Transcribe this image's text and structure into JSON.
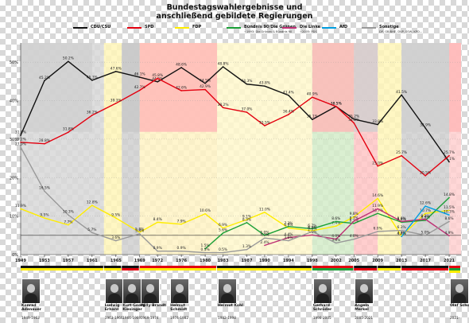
{
  "title_line1": "Bundestagswahlergebnisse und",
  "title_line2": "anschließend gebildete Regierungen",
  "legend": [
    {
      "name": "CDU/CSU",
      "color": "#111111",
      "note": ""
    },
    {
      "name": "SPD",
      "color": "#e3000f",
      "note": ""
    },
    {
      "name": "FDP",
      "color": "#ffed00",
      "note": ""
    },
    {
      "name": "Bündnis 90/Die Grünen",
      "color": "#1aa037",
      "note": "~1993: Die Grünen & Bündnis 90"
    },
    {
      "name": "Die Linke",
      "color": "#be3075",
      "note": "~2005: PDS"
    },
    {
      "name": "AfD",
      "color": "#009ee0",
      "note": ""
    },
    {
      "name": "Sonstige",
      "color": "#999999",
      "note": "DP, GB/BHE, DVP, SSW, KPD..."
    }
  ],
  "chart_data": {
    "type": "line",
    "x": [
      1949,
      1953,
      1957,
      1961,
      1965,
      1969,
      1972,
      1976,
      1980,
      1983,
      1987,
      1990,
      1994,
      1998,
      2002,
      2005,
      2009,
      2013,
      2017,
      2021
    ],
    "x_ticks": [
      "1949",
      "1953",
      "1957",
      "1961",
      "1965",
      "1969",
      "1972",
      "1976",
      "1980",
      "1983",
      "1987",
      "1990",
      "1994",
      "1998",
      "2002",
      "2005",
      "2009",
      "2013",
      "2017",
      "2021"
    ],
    "y_ticks": [
      "0%",
      "10%",
      "20%",
      "30%",
      "40%",
      "50%"
    ],
    "ylim": [
      0,
      55
    ],
    "threshold": 5,
    "series": [
      {
        "name": "CDU/CSU",
        "color": "#111111",
        "x": [
          1949,
          1953,
          1957,
          1961,
          1965,
          1969,
          1972,
          1976,
          1980,
          1983,
          1987,
          1990,
          1994,
          1998,
          2002,
          2005,
          2009,
          2013,
          2017,
          2021
        ],
        "values": [
          31.0,
          45.2,
          50.2,
          45.3,
          47.6,
          46.1,
          44.9,
          48.6,
          44.5,
          48.8,
          44.3,
          43.8,
          41.4,
          35.1,
          38.5,
          35.2,
          33.8,
          41.5,
          32.9,
          24.1
        ],
        "labels": [
          "31.0%",
          "45.2%",
          "50.2%",
          "45.3%",
          "47.6%",
          "46.1%",
          "44.9%",
          "48.6%",
          "44.5%",
          "48.8%",
          "44.3%",
          "43.8%",
          "41.4%",
          "35.1%",
          "38.5%",
          "35.2%",
          "33.8%",
          "41.5%",
          "32.9%",
          "24.1%"
        ]
      },
      {
        "name": "SPD",
        "color": "#e3000f",
        "x": [
          1949,
          1953,
          1957,
          1961,
          1965,
          1969,
          1972,
          1976,
          1980,
          1983,
          1987,
          1990,
          1994,
          1998,
          2002,
          2005,
          2009,
          2013,
          2017,
          2021
        ],
        "values": [
          29.2,
          28.8,
          31.8,
          36.2,
          39.3,
          42.7,
          45.8,
          42.6,
          42.9,
          38.2,
          37.0,
          33.5,
          36.4,
          40.9,
          38.5,
          34.2,
          23.0,
          25.7,
          20.5,
          25.7
        ],
        "labels": [
          "29.2%",
          "28.8%",
          "31.8%",
          "36.2%",
          "39.3%",
          "42.7%",
          "45.8%",
          "42.6%",
          "42.9%",
          "38.2%",
          "37.0%",
          "33.5%",
          "36.4%",
          "40.9%",
          "38.5%",
          "34.2%",
          "23.0%",
          "25.7%",
          "20.5%",
          "25.7%"
        ]
      },
      {
        "name": "FDP",
        "color": "#ffed00",
        "x": [
          1949,
          1953,
          1957,
          1961,
          1965,
          1969,
          1972,
          1976,
          1980,
          1983,
          1987,
          1990,
          1994,
          1998,
          2002,
          2005,
          2009,
          2013,
          2017,
          2021
        ],
        "values": [
          11.9,
          9.5,
          7.7,
          12.8,
          9.5,
          5.8,
          8.4,
          7.9,
          10.6,
          6.9,
          9.1,
          11.0,
          6.9,
          6.2,
          7.4,
          9.8,
          14.6,
          4.8,
          10.7,
          11.5
        ],
        "labels": [
          "11.9%",
          "9.5%",
          "7.7%",
          "12.8%",
          "9.5%",
          "5.8%",
          "8.4%",
          "7.9%",
          "10.6%",
          "6.9%",
          "9.1%",
          "11.0%",
          "6.9%",
          "6.2%",
          "7.4%",
          "9.8%",
          "14.6%",
          "4.8%",
          "10.7%",
          "11.5%"
        ]
      },
      {
        "name": "Bündnis 90/Die Grünen",
        "color": "#1aa037",
        "x": [
          1980,
          1983,
          1987,
          1990,
          1994,
          1998,
          2002,
          2005,
          2009,
          2013,
          2017,
          2021
        ],
        "values": [
          1.5,
          5.6,
          8.3,
          5.0,
          7.3,
          6.7,
          8.6,
          8.1,
          10.7,
          8.4,
          8.9,
          14.8
        ],
        "labels": [
          "1.5%",
          "5.6%",
          "8.3%",
          "5.0%",
          "7.3%",
          "6.7%",
          "8.6%",
          "8.1%",
          "10.7%",
          "8.4%",
          "8.9%",
          "14.8%"
        ]
      },
      {
        "name": "Die Linke",
        "color": "#be3075",
        "x": [
          1990,
          1994,
          1998,
          2002,
          2005,
          2009,
          2013,
          2017,
          2021
        ],
        "values": [
          2.4,
          4.4,
          5.1,
          4.0,
          8.7,
          11.9,
          8.6,
          9.2,
          4.9
        ],
        "labels": [
          "2.4%",
          "4.4%",
          "5.1%",
          "4.0%",
          "8.7%",
          "11.9%",
          "8.6%",
          "9.2%",
          "4.9%"
        ]
      },
      {
        "name": "AfD",
        "color": "#009ee0",
        "x": [
          2013,
          2017,
          2021
        ],
        "values": [
          4.7,
          12.6,
          10.3
        ],
        "labels": [
          "4.7%",
          "12.6%",
          "10.3%"
        ]
      },
      {
        "name": "Sonstige",
        "color": "#999999",
        "x": [
          1949,
          1953,
          1957,
          1961,
          1965,
          1969,
          1972,
          1976,
          1980,
          1983,
          1987,
          1990,
          1994,
          1998,
          2002,
          2005,
          2009,
          2013,
          2017,
          2021
        ],
        "values": [
          27.9,
          16.5,
          10.3,
          5.7,
          3.6,
          5.4,
          0.9,
          0.9,
          0.5,
          0.5,
          1.3,
          4.3,
          3.6,
          6.0,
          3.0,
          4.0,
          6.0,
          6.3,
          5.0,
          8.6
        ],
        "labels": [
          "27.9%",
          "16.5%",
          "10.3%",
          "5.7%",
          "3.6%",
          "5.4%",
          "0.9%",
          "0.9%",
          "0.5%",
          "0.5%",
          "1.3%",
          "4.3%",
          "3.6%",
          "6.0%",
          "3.0%",
          "4.0%",
          "6.0%",
          "6.3%",
          "5.0%",
          "8.6%"
        ]
      }
    ],
    "government_bands": [
      {
        "start": 1949,
        "end": 1963,
        "color": "#d8d8d8"
      },
      {
        "start": 1963,
        "end": 1966,
        "color": "#fff6b8"
      },
      {
        "start": 1966,
        "end": 1969,
        "color": "#d0d0d0"
      },
      {
        "start": 1969,
        "end": 1982,
        "color": "#fff3c4"
      },
      {
        "start": 1982,
        "end": 1998,
        "color": "#fff8cc"
      },
      {
        "start": 1998,
        "end": 2005,
        "color": "#d4ecc9"
      },
      {
        "start": 2005,
        "end": 2009,
        "color": "#ffc6c6"
      },
      {
        "start": 2009,
        "end": 2013,
        "color": "#fff6b8"
      },
      {
        "start": 2013,
        "end": 2021,
        "color": "#d0d0d0"
      },
      {
        "start": 2021,
        "end": 2023,
        "color": "#ffd0d0"
      }
    ],
    "top_bands": [
      {
        "start": 1949,
        "end": 1961,
        "color": "#cfcfcf"
      },
      {
        "start": 1966,
        "end": 1969,
        "color": "#c8c8c8"
      },
      {
        "start": 1969,
        "end": 1982,
        "color": "#ffb7b7"
      },
      {
        "start": 1998,
        "end": 2005,
        "color": "#ffb7b7"
      },
      {
        "start": 2005,
        "end": 2009,
        "color": "#cfcfcf"
      },
      {
        "start": 2013,
        "end": 2021,
        "color": "#cfcfcf"
      },
      {
        "start": 2021,
        "end": 2023,
        "color": "#ffb7b7"
      }
    ],
    "coalition_bars": [
      {
        "start": 1949,
        "end": 1963,
        "colors": [
          "#111111",
          "#ffed00"
        ]
      },
      {
        "start": 1963,
        "end": 1966,
        "colors": [
          "#111111",
          "#ffed00"
        ]
      },
      {
        "start": 1966,
        "end": 1969,
        "colors": [
          "#111111",
          "#e3000f"
        ]
      },
      {
        "start": 1969,
        "end": 1982,
        "colors": [
          "#e3000f",
          "#ffed00"
        ]
      },
      {
        "start": 1982,
        "end": 1998,
        "colors": [
          "#111111",
          "#ffed00"
        ]
      },
      {
        "start": 1998,
        "end": 2005,
        "colors": [
          "#e3000f",
          "#1aa037"
        ]
      },
      {
        "start": 2005,
        "end": 2009,
        "colors": [
          "#111111",
          "#e3000f"
        ]
      },
      {
        "start": 2009,
        "end": 2013,
        "colors": [
          "#111111",
          "#ffed00"
        ]
      },
      {
        "start": 2013,
        "end": 2021,
        "colors": [
          "#111111",
          "#e3000f"
        ]
      },
      {
        "start": 2021,
        "end": 2023,
        "colors": [
          "#e3000f",
          "#1aa037",
          "#ffed00"
        ]
      }
    ]
  },
  "chancellors": [
    {
      "name": "Konrad Adenauer",
      "term": "1949-1963",
      "year": 1949
    },
    {
      "name": "Ludwig Erhard",
      "term": "1963-1966",
      "year": 1963
    },
    {
      "name": "Kurt Georg Kiesinger",
      "term": "1966-1969",
      "year": 1966
    },
    {
      "name": "Willy Brandt",
      "term": "1969-1974",
      "year": 1969
    },
    {
      "name": "Helmut Schmidt",
      "term": "1974-1982",
      "year": 1974
    },
    {
      "name": "Helmut Kohl",
      "term": "1982-1998",
      "year": 1982
    },
    {
      "name": "Gerhard Schröder",
      "term": "1998-2005",
      "year": 1998
    },
    {
      "name": "Angela Merkel",
      "term": "2005-2021",
      "year": 2005
    },
    {
      "name": "Olaf Scholz",
      "term": "2021-",
      "year": 2021
    }
  ]
}
